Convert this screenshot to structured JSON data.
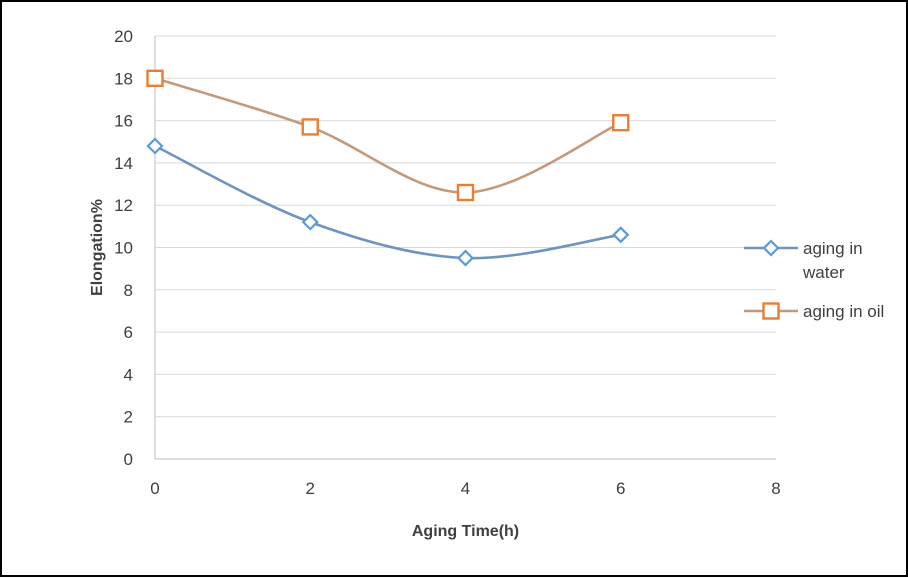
{
  "chart_data": {
    "type": "line",
    "title": "",
    "xlabel": "Aging Time(h)",
    "ylabel": "Elongation%",
    "xlim": [
      0,
      8
    ],
    "ylim": [
      0,
      20
    ],
    "x_ticks": [
      "0",
      "2",
      "4",
      "6",
      "8"
    ],
    "y_ticks": [
      "0",
      "2",
      "4",
      "6",
      "8",
      "10",
      "12",
      "14",
      "16",
      "18",
      "20"
    ],
    "grid": "horizontal",
    "smooth": true,
    "legend_position": "right",
    "series": [
      {
        "name_lines": [
          "aging in",
          "water"
        ],
        "color": "#7094c0",
        "marker": "diamond",
        "marker_color": "#5b9bd5",
        "x": [
          0,
          2,
          4,
          6
        ],
        "y": [
          14.8,
          11.2,
          9.5,
          10.6
        ]
      },
      {
        "name_lines": [
          "aging in oil"
        ],
        "color": "#c49a7c",
        "marker": "square",
        "marker_color": "#ed7d31",
        "x": [
          0,
          2,
          4,
          6
        ],
        "y": [
          18.0,
          15.7,
          12.6,
          15.9
        ]
      }
    ]
  }
}
